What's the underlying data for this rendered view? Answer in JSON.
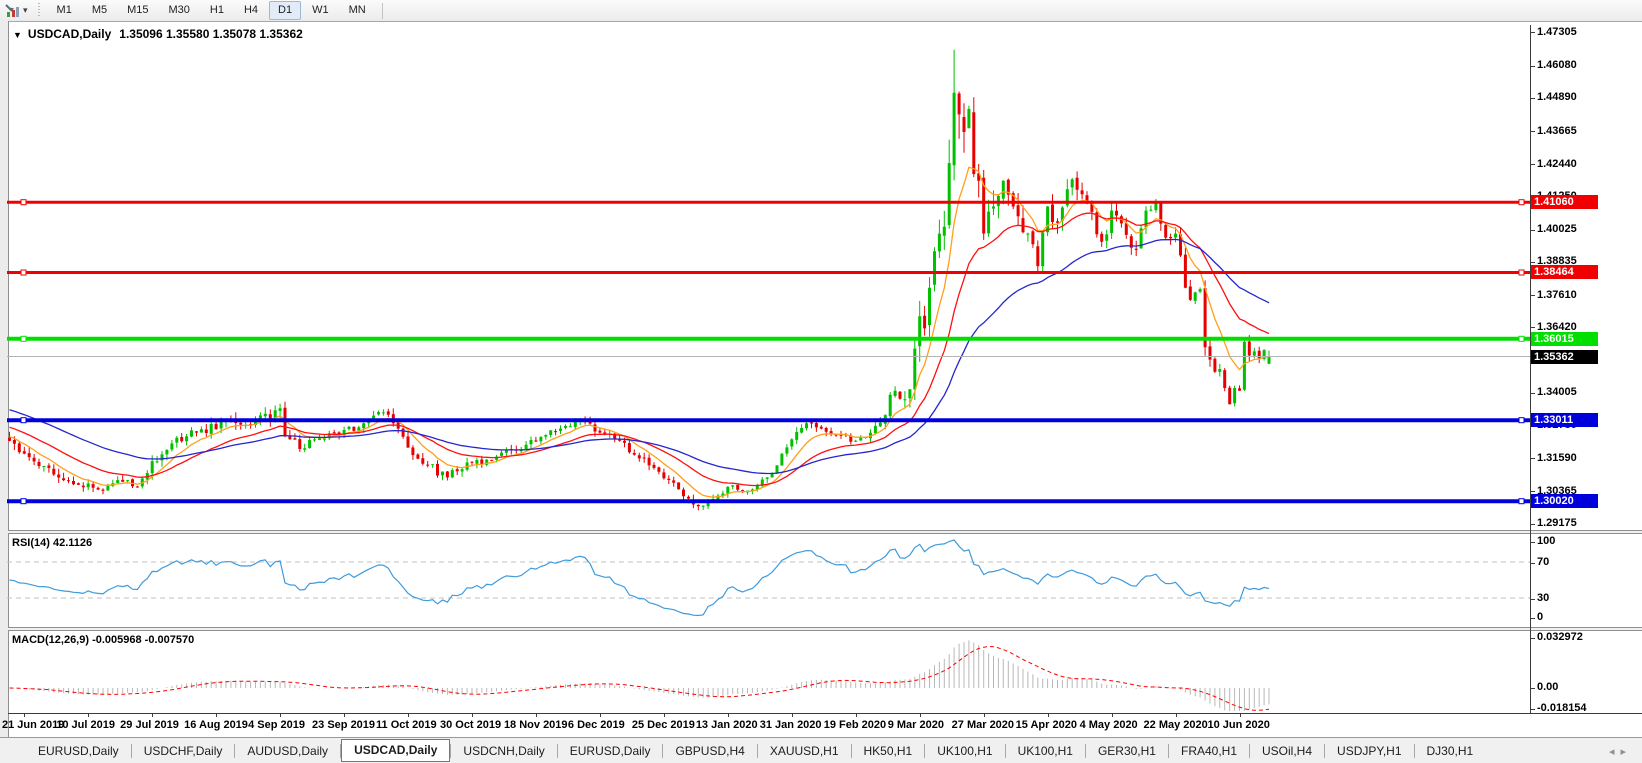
{
  "toolbar": {
    "timeframes": [
      "M1",
      "M5",
      "M15",
      "M30",
      "H1",
      "H4",
      "D1",
      "W1",
      "MN"
    ],
    "active_timeframe": "D1",
    "tools_icon": "chart-tools-icon",
    "dropdown_caret": "▾"
  },
  "chart": {
    "menu_caret": "▼",
    "symbol_title": "USDCAD,Daily",
    "ohlc_text": "1.35096 1.35580 1.35078 1.35362"
  },
  "chart_data": {
    "type": "candlestick",
    "symbol": "USDCAD",
    "timeframe": "Daily",
    "last_ohlc": {
      "open": 1.35096,
      "high": 1.3558,
      "low": 1.35078,
      "close": 1.35362
    },
    "current_price": 1.35362,
    "peak_high": 1.4669,
    "price_axis_ticks": [
      1.47305,
      1.4608,
      1.4489,
      1.43665,
      1.4244,
      1.4125,
      1.40025,
      1.38835,
      1.3761,
      1.3642,
      1.35195,
      1.34005,
      1.3278,
      1.3159,
      1.30365,
      1.29175
    ],
    "horizontal_lines": [
      {
        "price": 1.4106,
        "color": "#f00000",
        "width": 3
      },
      {
        "price": 1.38464,
        "color": "#f00000",
        "width": 3
      },
      {
        "price": 1.36015,
        "color": "#00df00",
        "width": 4
      },
      {
        "price": 1.33011,
        "color": "#0000dd",
        "width": 4
      },
      {
        "price": 1.3002,
        "color": "#0000dd",
        "width": 4
      }
    ],
    "date_labels": [
      "21 Jun 2019",
      "10 Jul 2019",
      "29 Jul 2019",
      "16 Aug 2019",
      "4 Sep 2019",
      "23 Sep 2019",
      "11 Oct 2019",
      "30 Oct 2019",
      "18 Nov 2019",
      "6 Dec 2019",
      "25 Dec 2019",
      "13 Jan 2020",
      "31 Jan 2020",
      "19 Feb 2020",
      "9 Mar 2020",
      "27 Mar 2020",
      "15 Apr 2020",
      "4 May 2020",
      "22 May 2020",
      "10 Jun 2020"
    ],
    "bars_total": 257,
    "bars_per_label": 13,
    "first_label_bar": 3,
    "candle_colors": {
      "up": "#00c000",
      "down": "#e60000"
    },
    "bid_line_color": "#b4b4b4",
    "moving_averages": [
      {
        "period": 8,
        "color": "#ff9f1a",
        "seed_offset": 0.002
      },
      {
        "period": 21,
        "color": "#ff1010",
        "seed_offset": 0.0055
      },
      {
        "period": 45,
        "color": "#2626cf",
        "seed_offset": 0.012
      }
    ],
    "close_waypoints": [
      [
        0,
        1.3225,
        0.0045
      ],
      [
        4,
        1.3165,
        0.004
      ],
      [
        8,
        1.3125,
        0.004
      ],
      [
        13,
        1.3065,
        0.0035
      ],
      [
        18,
        1.3045,
        0.0035
      ],
      [
        22,
        1.308,
        0.0035
      ],
      [
        26,
        1.3055,
        0.003
      ],
      [
        29,
        1.315,
        0.0045
      ],
      [
        33,
        1.3215,
        0.004
      ],
      [
        38,
        1.3255,
        0.0045
      ],
      [
        45,
        1.33,
        0.005
      ],
      [
        49,
        1.3285,
        0.0045
      ],
      [
        55,
        1.3345,
        0.0055
      ],
      [
        56,
        1.3245,
        0.005
      ],
      [
        59,
        1.3195,
        0.004
      ],
      [
        63,
        1.3235,
        0.0035
      ],
      [
        68,
        1.3265,
        0.0035
      ],
      [
        72,
        1.329,
        0.004
      ],
      [
        76,
        1.333,
        0.0045
      ],
      [
        78,
        1.329,
        0.004
      ],
      [
        81,
        1.32,
        0.0045
      ],
      [
        85,
        1.3135,
        0.0035
      ],
      [
        89,
        1.309,
        0.0035
      ],
      [
        93,
        1.3145,
        0.0035
      ],
      [
        97,
        1.3155,
        0.003
      ],
      [
        102,
        1.319,
        0.003
      ],
      [
        107,
        1.3225,
        0.003
      ],
      [
        112,
        1.327,
        0.003
      ],
      [
        116,
        1.3305,
        0.0035
      ],
      [
        120,
        1.3255,
        0.0035
      ],
      [
        124,
        1.3225,
        0.003
      ],
      [
        128,
        1.316,
        0.0035
      ],
      [
        131,
        1.3125,
        0.003
      ],
      [
        134,
        1.308,
        0.003
      ],
      [
        137,
        1.302,
        0.003
      ],
      [
        139,
        1.299,
        0.0035
      ],
      [
        141,
        1.2985,
        0.003
      ],
      [
        143,
        1.301,
        0.003
      ],
      [
        146,
        1.3055,
        0.003
      ],
      [
        149,
        1.3035,
        0.0025
      ],
      [
        152,
        1.306,
        0.0025
      ],
      [
        155,
        1.3105,
        0.003
      ],
      [
        159,
        1.323,
        0.0035
      ],
      [
        162,
        1.329,
        0.0035
      ],
      [
        165,
        1.327,
        0.003
      ],
      [
        168,
        1.3245,
        0.003
      ],
      [
        172,
        1.3225,
        0.003
      ],
      [
        175,
        1.3255,
        0.003
      ],
      [
        178,
        1.332,
        0.0045
      ],
      [
        179,
        1.3395,
        0.006
      ],
      [
        181,
        1.338,
        0.006
      ],
      [
        183,
        1.3415,
        0.007
      ],
      [
        185,
        1.3685,
        0.012
      ],
      [
        186,
        1.364,
        0.013
      ],
      [
        187,
        1.379,
        0.015
      ],
      [
        188,
        1.3925,
        0.016
      ],
      [
        189,
        1.399,
        0.016
      ],
      [
        190,
        1.4015,
        0.015
      ],
      [
        191,
        1.425,
        0.016
      ],
      [
        192,
        1.451,
        0.018
      ],
      [
        193,
        1.443,
        0.02
      ],
      [
        194,
        1.4365,
        0.016
      ],
      [
        195,
        1.445,
        0.014
      ],
      [
        196,
        1.421,
        0.014
      ],
      [
        197,
        1.4185,
        0.012
      ],
      [
        198,
        1.399,
        0.013
      ],
      [
        200,
        1.409,
        0.011
      ],
      [
        202,
        1.4185,
        0.01
      ],
      [
        204,
        1.409,
        0.009
      ],
      [
        207,
        1.399,
        0.009
      ],
      [
        209,
        1.387,
        0.009
      ],
      [
        211,
        1.409,
        0.009
      ],
      [
        213,
        1.403,
        0.008
      ],
      [
        216,
        1.419,
        0.008
      ],
      [
        218,
        1.4135,
        0.007
      ],
      [
        220,
        1.407,
        0.007
      ],
      [
        222,
        1.396,
        0.007
      ],
      [
        224,
        1.4075,
        0.007
      ],
      [
        227,
        1.3985,
        0.006
      ],
      [
        229,
        1.393,
        0.006
      ],
      [
        231,
        1.4075,
        0.006
      ],
      [
        233,
        1.4105,
        0.006
      ],
      [
        235,
        1.3975,
        0.006
      ],
      [
        237,
        1.399,
        0.0055
      ],
      [
        239,
        1.379,
        0.006
      ],
      [
        240,
        1.3745,
        0.0055
      ],
      [
        242,
        1.3785,
        0.005
      ],
      [
        243,
        1.357,
        0.006
      ],
      [
        244,
        1.3525,
        0.005
      ],
      [
        245,
        1.348,
        0.005
      ],
      [
        246,
        1.349,
        0.0045
      ],
      [
        247,
        1.342,
        0.0045
      ],
      [
        248,
        1.336,
        0.008
      ],
      [
        249,
        1.342,
        0.0045
      ],
      [
        250,
        1.341,
        0.0045
      ],
      [
        251,
        1.359,
        0.005
      ],
      [
        252,
        1.354,
        0.0045
      ],
      [
        253,
        1.3555,
        0.004
      ],
      [
        254,
        1.353,
        0.004
      ],
      [
        255,
        1.356,
        0.004
      ],
      [
        256,
        1.35362,
        0.004
      ]
    ],
    "indicators": {
      "rsi": {
        "label": "RSI(14) 42.1126",
        "period": 14,
        "value": 42.1126,
        "axis": [
          100,
          70,
          30,
          0
        ],
        "levels": [
          70,
          30
        ],
        "color": "#3d9bdc",
        "level_color": "#c0c0c0"
      },
      "macd": {
        "label": "MACD(12,26,9) -0.005968 -0.007570",
        "fast": 12,
        "slow": 26,
        "signal": 9,
        "macd_value": -0.005968,
        "signal_value": -0.00757,
        "axis": [
          {
            "label": "0.032972",
            "value": 0.032972
          },
          {
            "label": "0.00",
            "value": 0
          },
          {
            "label": "-0.018154",
            "value": -0.018154
          }
        ],
        "histogram_color": "#b8b8b8",
        "signal_color": "#ff0000"
      }
    }
  },
  "tabs": {
    "items": [
      {
        "label": "EURUSD,Daily",
        "active": false
      },
      {
        "label": "USDCHF,Daily",
        "active": false
      },
      {
        "label": "AUDUSD,Daily",
        "active": false
      },
      {
        "label": "USDCAD,Daily",
        "active": true
      },
      {
        "label": "USDCNH,Daily",
        "active": false
      },
      {
        "label": "EURUSD,Daily",
        "active": false
      },
      {
        "label": "GBPUSD,H4",
        "active": false
      },
      {
        "label": "XAUUSD,H1",
        "active": false
      },
      {
        "label": "HK50,H1",
        "active": false
      },
      {
        "label": "UK100,H1",
        "active": false
      },
      {
        "label": "UK100,H1",
        "active": false
      },
      {
        "label": "GER30,H1",
        "active": false
      },
      {
        "label": "FRA40,H1",
        "active": false
      },
      {
        "label": "USOil,H4",
        "active": false
      },
      {
        "label": "USDJPY,H1",
        "active": false
      },
      {
        "label": "DJ30,H1",
        "active": false
      }
    ],
    "prev_arrow": "◂",
    "next_arrow": "▸"
  }
}
